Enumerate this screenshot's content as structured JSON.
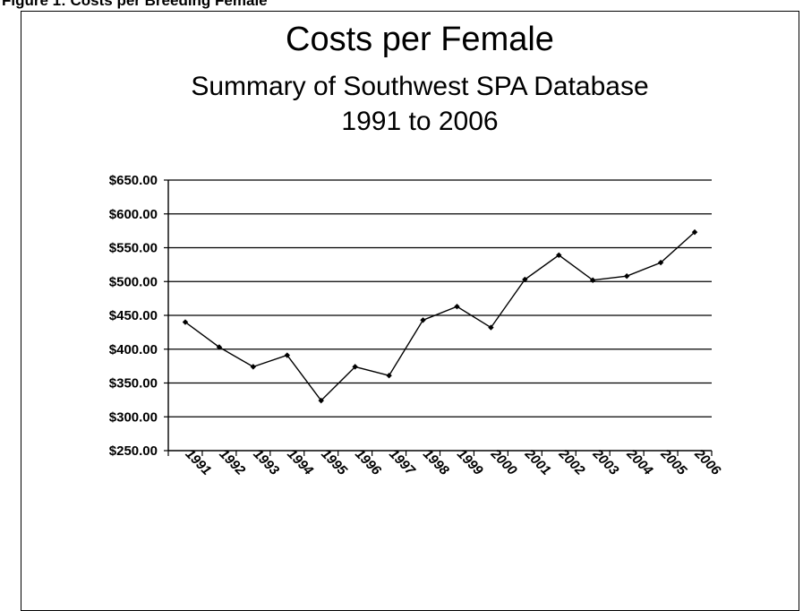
{
  "figure_caption": "Figure 1: Costs per Breeding Female",
  "chart_data": {
    "type": "line",
    "title": "Costs per Female",
    "subtitle_lines": [
      "Summary of Southwest SPA Database",
      "1991 to 2006"
    ],
    "xlabel": "",
    "ylabel": "",
    "ylim": [
      250,
      650
    ],
    "yticks": [
      250,
      300,
      350,
      400,
      450,
      500,
      550,
      600,
      650
    ],
    "ytick_labels": [
      "$250.00",
      "$300.00",
      "$350.00",
      "$400.00",
      "$450.00",
      "$500.00",
      "$550.00",
      "$600.00",
      "$650.00"
    ],
    "grid": true,
    "legend": "none",
    "categories": [
      "1991",
      "1992",
      "1993",
      "1994",
      "1995",
      "1996",
      "1997",
      "1998",
      "1999",
      "2000",
      "2001",
      "2002",
      "2003",
      "2004",
      "2005",
      "2006"
    ],
    "values": [
      440,
      403,
      374,
      391,
      324,
      374,
      361,
      443,
      463,
      432,
      503,
      539,
      502,
      508,
      528,
      573
    ],
    "line_color": "#000000"
  }
}
